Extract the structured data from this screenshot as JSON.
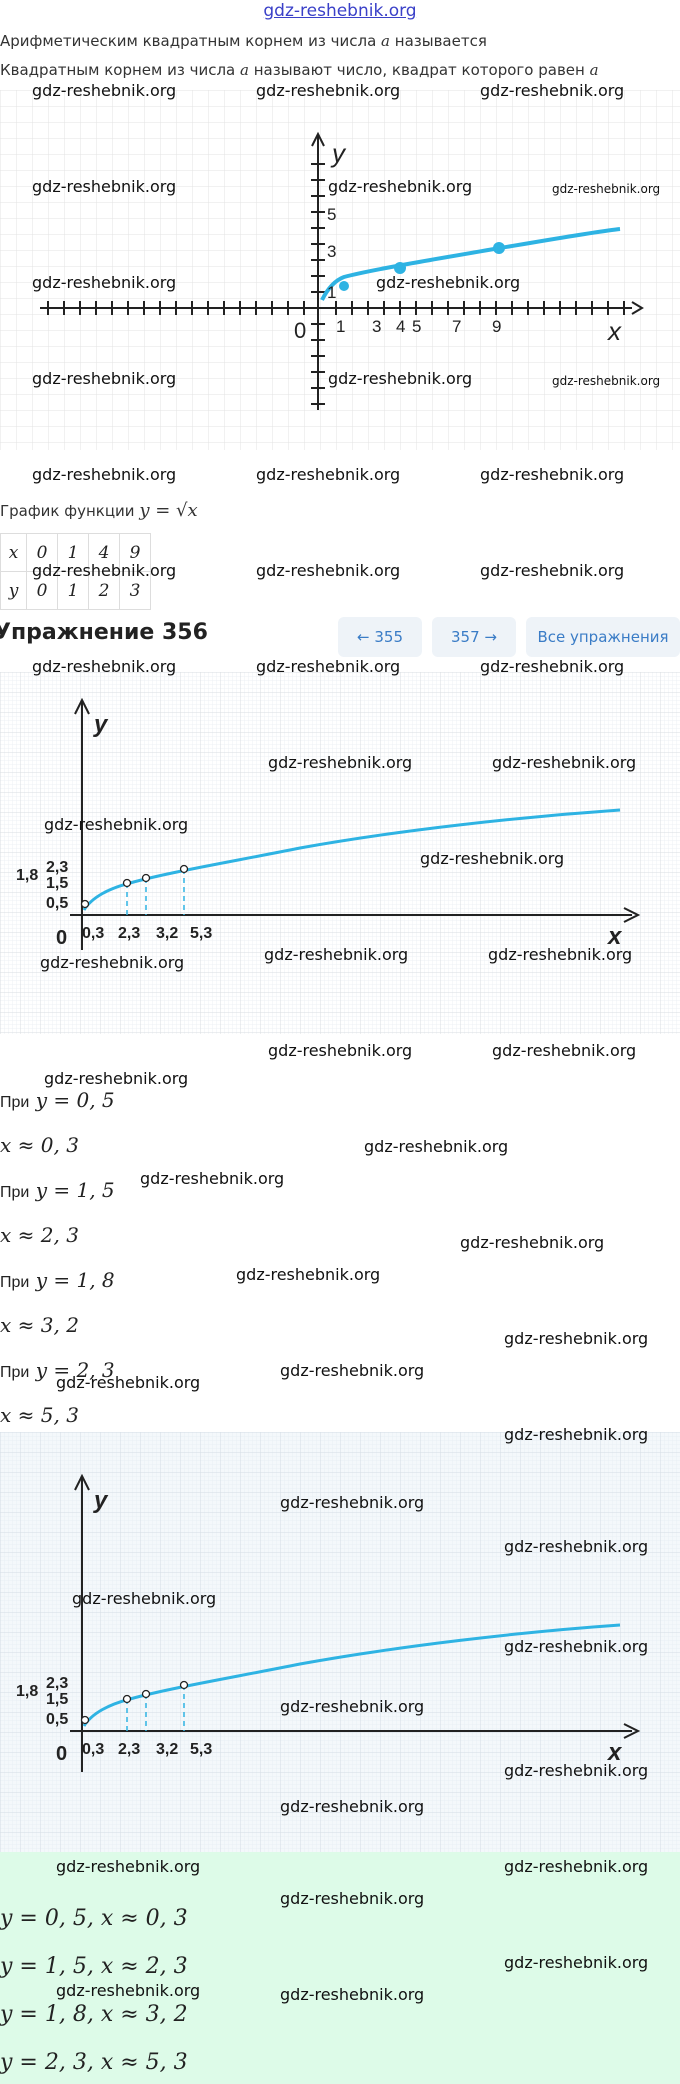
{
  "site_link": "gdz-reshebnik.org",
  "definition_line": {
    "text": "Арифметическим квадратным корнем из числа ",
    "var": "a",
    "tail": " называется"
  },
  "definition_line2": {
    "text": "Квадратным корнем из числа ",
    "var": "a",
    "mid": " называют число, квадрат которого равен ",
    "var2": "a"
  },
  "graph1": {
    "axis_x": "x",
    "axis_y": "y",
    "origin": "0",
    "x_ticks": [
      "1",
      "3",
      "4",
      "5",
      "7",
      "9"
    ],
    "y_ticks": [
      "1",
      "3",
      "5"
    ]
  },
  "function_caption": {
    "text": "График функции ",
    "formula": "y = √x"
  },
  "value_table": {
    "x_label": "x",
    "y_label": "y",
    "x_values": [
      "0",
      "1",
      "4",
      "9"
    ],
    "y_values": [
      "0",
      "1",
      "2",
      "3"
    ]
  },
  "exercise": {
    "title": "Упражнение 356"
  },
  "nav": {
    "prev_label": "← 355",
    "next_label": "357 →",
    "all_label": "Все упражнения"
  },
  "graph2": {
    "axis_x": "x",
    "axis_y": "y",
    "origin": "0",
    "y_labels": [
      "2,3",
      "1,8",
      "1,5",
      "0,5"
    ],
    "x_labels": [
      "0,3",
      "2,3",
      "3,2",
      "5,3"
    ]
  },
  "solution": [
    {
      "label": "При",
      "formula": "y = 0, 5"
    },
    {
      "label": "",
      "formula": "x ≈ 0, 3"
    },
    {
      "label": "При",
      "formula": "y = 1, 5"
    },
    {
      "label": "",
      "formula": "x ≈ 2, 3"
    },
    {
      "label": "При",
      "formula": "y = 1, 8"
    },
    {
      "label": "",
      "formula": "x ≈ 3, 2"
    },
    {
      "label": "При",
      "formula": "y = 2, 3"
    },
    {
      "label": "",
      "formula": "x ≈ 5, 3"
    }
  ],
  "answers": [
    "y = 0, 5, x ≈ 0, 3",
    "y = 1, 5, x ≈ 2, 3",
    "y = 1, 8, x ≈ 3, 2",
    "y = 2, 3, x ≈ 5, 3"
  ],
  "watermark_text": "gdz-reshebnik.org",
  "colors": {
    "curve": "#2eb3e3",
    "grid": "#e3e3e3",
    "answer_bg": "#ddfbe8",
    "link": "#3a40c8",
    "nav_text": "#3a7cc6"
  }
}
